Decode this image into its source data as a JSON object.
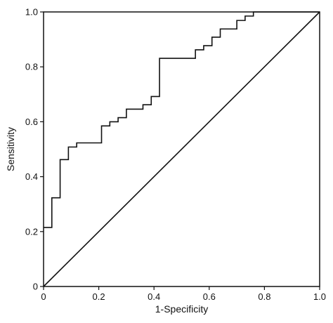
{
  "chart_data": {
    "type": "line",
    "title": "",
    "xlabel": "1-Specificity",
    "ylabel": "Sensitivity",
    "xlim": [
      0,
      1
    ],
    "ylim": [
      0,
      1
    ],
    "x_ticks": [
      0,
      0.2,
      0.4,
      0.6,
      0.8,
      1.0
    ],
    "y_ticks": [
      0,
      0.2,
      0.4,
      0.6,
      0.8,
      1.0
    ],
    "x_tick_labels": [
      "0",
      "0.2",
      "0.4",
      "0.6",
      "0.8",
      "1.0"
    ],
    "y_tick_labels": [
      "0",
      "0.2",
      "0.4",
      "0.6",
      "0.8",
      "1.0"
    ],
    "grid": false,
    "legend": "none",
    "colors": {
      "line": "#111111",
      "axes": "#111111"
    },
    "series": [
      {
        "style": "step",
        "x": [
          0,
          0.03,
          0.03,
          0.06,
          0.06,
          0.09,
          0.09,
          0.12,
          0.12,
          0.21,
          0.21,
          0.24,
          0.24,
          0.27,
          0.27,
          0.3,
          0.3,
          0.36,
          0.36,
          0.39,
          0.39,
          0.42,
          0.42,
          0.55,
          0.55,
          0.58,
          0.58,
          0.61,
          0.61,
          0.64,
          0.64,
          0.7,
          0.7,
          0.73,
          0.73,
          0.76,
          0.76,
          1.0
        ],
        "y": [
          0.215,
          0.215,
          0.323,
          0.323,
          0.462,
          0.462,
          0.508,
          0.508,
          0.523,
          0.523,
          0.585,
          0.585,
          0.6,
          0.6,
          0.615,
          0.615,
          0.646,
          0.646,
          0.662,
          0.662,
          0.692,
          0.692,
          0.831,
          0.831,
          0.862,
          0.862,
          0.877,
          0.877,
          0.908,
          0.908,
          0.938,
          0.938,
          0.969,
          0.969,
          0.985,
          0.985,
          1.0,
          1.0
        ]
      },
      {
        "style": "diagonal",
        "x": [
          0,
          1
        ],
        "y": [
          0,
          1
        ]
      }
    ]
  }
}
